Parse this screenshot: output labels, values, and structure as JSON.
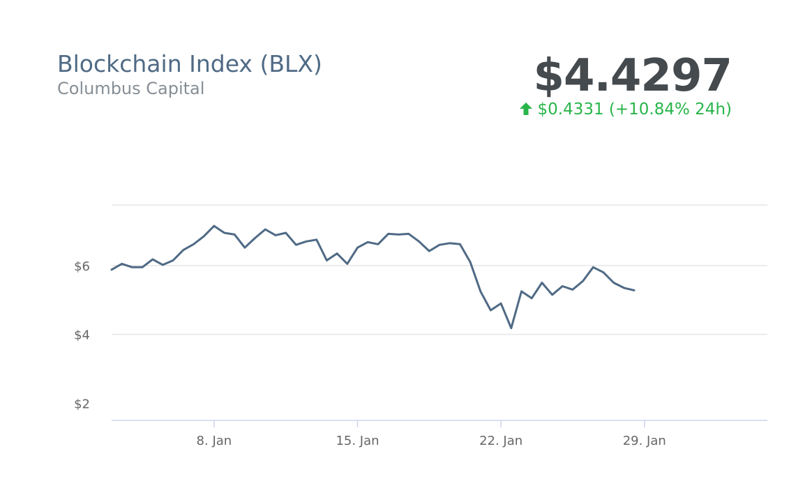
{
  "header": {
    "title": "Blockchain Index (BLX)",
    "subtitle": "Columbus Capital",
    "price": "$4.4297",
    "change_text": "$0.4331 (+10.84% 24h)",
    "change_direction_icon": "arrow-up-icon",
    "change_color": "#28b54a"
  },
  "chart_data": {
    "type": "line",
    "title": "Blockchain Index (BLX)",
    "xlabel": "",
    "ylabel": "",
    "ylim": [
      1.5,
      7.8
    ],
    "yticks": [
      2,
      4,
      6
    ],
    "ytick_labels": [
      "$2",
      "$4",
      "$6"
    ],
    "xlim": [
      "2018-01-03",
      "2018-02-04"
    ],
    "xticks": [
      "2018-01-08",
      "2018-01-15",
      "2018-01-22",
      "2018-01-29"
    ],
    "xtick_labels": [
      "8. Jan",
      "15. Jan",
      "22. Jan",
      "29. Jan"
    ],
    "grid": true,
    "legend": "none",
    "line_color": "#4f6a85",
    "series": [
      {
        "values": [
          [
            "2018-01-03",
            5.88
          ],
          [
            "2018-01-03 12:00",
            6.05
          ],
          [
            "2018-01-04",
            5.95
          ],
          [
            "2018-01-04 12:00",
            5.95
          ],
          [
            "2018-01-05",
            6.18
          ],
          [
            "2018-01-05 12:00",
            6.02
          ],
          [
            "2018-01-06",
            6.15
          ],
          [
            "2018-01-06 12:00",
            6.45
          ],
          [
            "2018-01-07",
            6.62
          ],
          [
            "2018-01-07 12:00",
            6.85
          ],
          [
            "2018-01-08",
            7.15
          ],
          [
            "2018-01-08 12:00",
            6.95
          ],
          [
            "2018-01-09",
            6.9
          ],
          [
            "2018-01-09 12:00",
            6.52
          ],
          [
            "2018-01-10",
            6.8
          ],
          [
            "2018-01-10 12:00",
            7.05
          ],
          [
            "2018-01-11",
            6.88
          ],
          [
            "2018-01-11 12:00",
            6.95
          ],
          [
            "2018-01-12",
            6.6
          ],
          [
            "2018-01-12 12:00",
            6.7
          ],
          [
            "2018-01-13",
            6.75
          ],
          [
            "2018-01-13 12:00",
            6.15
          ],
          [
            "2018-01-14",
            6.35
          ],
          [
            "2018-01-14 12:00",
            6.05
          ],
          [
            "2018-01-15",
            6.52
          ],
          [
            "2018-01-15 12:00",
            6.68
          ],
          [
            "2018-01-16",
            6.62
          ],
          [
            "2018-01-16 12:00",
            6.92
          ],
          [
            "2018-01-17",
            6.9
          ],
          [
            "2018-01-17 12:00",
            6.92
          ],
          [
            "2018-01-18",
            6.7
          ],
          [
            "2018-01-18 12:00",
            6.42
          ],
          [
            "2018-01-19",
            6.6
          ],
          [
            "2018-01-19 12:00",
            6.65
          ],
          [
            "2018-01-20",
            6.62
          ],
          [
            "2018-01-20 12:00",
            6.1
          ],
          [
            "2018-01-21",
            5.25
          ],
          [
            "2018-01-21 12:00",
            4.7
          ],
          [
            "2018-01-22",
            4.9
          ],
          [
            "2018-01-22 12:00",
            4.18
          ],
          [
            "2018-01-23",
            5.25
          ],
          [
            "2018-01-23 12:00",
            5.05
          ],
          [
            "2018-01-24",
            5.5
          ],
          [
            "2018-01-24 12:00",
            5.15
          ],
          [
            "2018-01-25",
            5.4
          ],
          [
            "2018-01-25 12:00",
            5.3
          ],
          [
            "2018-01-26",
            5.55
          ],
          [
            "2018-01-26 12:00",
            5.95
          ],
          [
            "2018-01-27",
            5.8
          ],
          [
            "2018-01-27 12:00",
            5.5
          ],
          [
            "2018-01-28",
            5.35
          ],
          [
            "2018-01-28 12:00",
            5.28
          ]
        ]
      }
    ]
  }
}
